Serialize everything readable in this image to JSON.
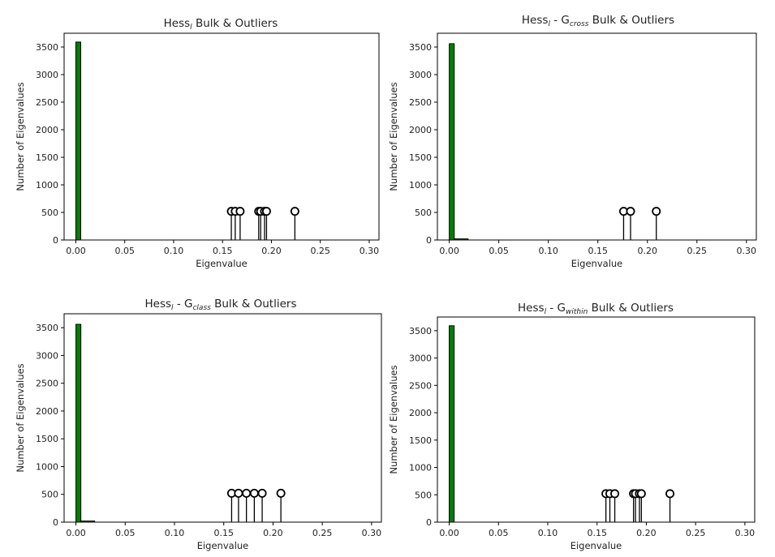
{
  "chart_data": [
    {
      "type": "bar",
      "title": "Hess",
      "title_sub": "l",
      "title_mid": "",
      "title_mid_sub": "",
      "title_tail": " Bulk & Outliers",
      "xlabel": "Eigenvalue",
      "ylabel": "Number of Eigenvalues",
      "xlim": [
        -0.012,
        0.31
      ],
      "ylim": [
        0,
        3750
      ],
      "xticks": [
        "0.00",
        "0.05",
        "0.10",
        "0.15",
        "0.20",
        "0.25",
        "0.30"
      ],
      "yticks": [
        "0",
        "500",
        "1000",
        "1500",
        "2000",
        "2500",
        "3000",
        "3500"
      ],
      "bins": [
        {
          "x0": 0.0,
          "x1": 0.005,
          "count": 3590
        }
      ],
      "outliers": [
        0.159,
        0.163,
        0.168,
        0.187,
        0.189,
        0.193,
        0.195,
        0.224
      ],
      "stem_height": 520,
      "bar_color": "#008000",
      "stem_color": "#000000"
    },
    {
      "type": "bar",
      "title": "Hess",
      "title_sub": "l",
      "title_mid": " - G",
      "title_mid_sub": "cross",
      "title_tail": " Bulk & Outliers",
      "xlabel": "Eigenvalue",
      "ylabel": "Number of Eigenvalues",
      "xlim": [
        -0.012,
        0.31
      ],
      "ylim": [
        0,
        3750
      ],
      "xticks": [
        "0.00",
        "0.05",
        "0.10",
        "0.15",
        "0.20",
        "0.25",
        "0.30"
      ],
      "yticks": [
        "0",
        "500",
        "1000",
        "1500",
        "2000",
        "2500",
        "3000",
        "3500"
      ],
      "bins": [
        {
          "x0": 0.0,
          "x1": 0.005,
          "count": 3560
        },
        {
          "x0": 0.005,
          "x1": 0.019,
          "count": 20
        }
      ],
      "outliers": [
        0.176,
        0.183,
        0.209
      ],
      "stem_height": 520,
      "bar_color": "#008000",
      "stem_color": "#000000"
    },
    {
      "type": "bar",
      "title": "Hess",
      "title_sub": "l",
      "title_mid": " - G",
      "title_mid_sub": "class",
      "title_tail": " Bulk & Outliers",
      "xlabel": "Eigenvalue",
      "ylabel": "Number of Eigenvalues",
      "xlim": [
        -0.012,
        0.31
      ],
      "ylim": [
        0,
        3750
      ],
      "xticks": [
        "0.00",
        "0.05",
        "0.10",
        "0.15",
        "0.20",
        "0.25",
        "0.30"
      ],
      "yticks": [
        "0",
        "500",
        "1000",
        "1500",
        "2000",
        "2500",
        "3000",
        "3500"
      ],
      "bins": [
        {
          "x0": 0.0,
          "x1": 0.005,
          "count": 3560
        },
        {
          "x0": 0.005,
          "x1": 0.019,
          "count": 20
        }
      ],
      "outliers": [
        0.158,
        0.165,
        0.173,
        0.181,
        0.189,
        0.208
      ],
      "stem_height": 520,
      "bar_color": "#008000",
      "stem_color": "#000000"
    },
    {
      "type": "bar",
      "title": "Hess",
      "title_sub": "l",
      "title_mid": " - G",
      "title_mid_sub": "within",
      "title_tail": " Bulk & Outliers",
      "xlabel": "Eigenvalue",
      "ylabel": "Number of Eigenvalues",
      "xlim": [
        -0.012,
        0.31
      ],
      "ylim": [
        0,
        3750
      ],
      "xticks": [
        "0.00",
        "0.05",
        "0.10",
        "0.15",
        "0.20",
        "0.25",
        "0.30"
      ],
      "yticks": [
        "0",
        "500",
        "1000",
        "1500",
        "2000",
        "2500",
        "3000",
        "3500"
      ],
      "bins": [
        {
          "x0": 0.0,
          "x1": 0.005,
          "count": 3590
        }
      ],
      "outliers": [
        0.159,
        0.163,
        0.168,
        0.187,
        0.189,
        0.193,
        0.195,
        0.224
      ],
      "stem_height": 520,
      "bar_color": "#008000",
      "stem_color": "#000000"
    }
  ]
}
